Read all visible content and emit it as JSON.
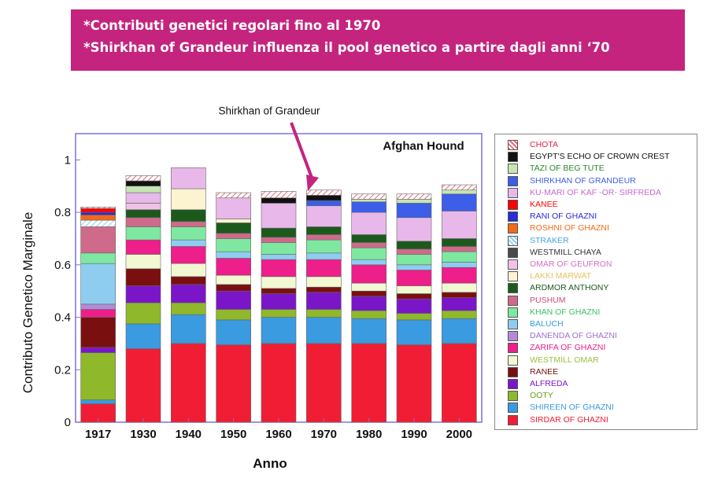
{
  "banner": {
    "line1": "*Contributi genetici regolari fino al 1970",
    "line2": "*Shirkhan of Grandeur influenza il pool genetico a partire dagli anni ‘70",
    "color": "#c4247e"
  },
  "chart_data": {
    "type": "bar",
    "stacked": true,
    "title": "Afghan Hound",
    "xlabel": "Anno",
    "ylabel": "Contributo Genetico Marginale",
    "ylim": [
      0,
      1.1
    ],
    "yticks": [
      "0",
      "0.2",
      "0.4",
      "0.6",
      "0.8",
      "1"
    ],
    "grid": false,
    "legend_position": "right",
    "annotation": {
      "text": "Shirkhan of Grandeur",
      "target_category": "1970"
    },
    "categories": [
      "1917",
      "1930",
      "1940",
      "1950",
      "1960",
      "1970",
      "1980",
      "1990",
      "2000"
    ],
    "series": [
      {
        "name": "SIRDAR OF GHAZNI",
        "color": "#f01d35",
        "values": [
          0.07,
          0.28,
          0.3,
          0.295,
          0.3,
          0.3,
          0.3,
          0.295,
          0.3
        ]
      },
      {
        "name": "SHIREEN OF GHAZNI",
        "color": "#3a9be0",
        "values": [
          0.015,
          0.095,
          0.11,
          0.095,
          0.1,
          0.1,
          0.095,
          0.095,
          0.095
        ]
      },
      {
        "name": "OOTY",
        "color": "#8fb82a",
        "values": [
          0.18,
          0.08,
          0.045,
          0.04,
          0.03,
          0.03,
          0.03,
          0.025,
          0.03
        ]
      },
      {
        "name": "ALFREDA",
        "color": "#7a16c8",
        "values": [
          0.02,
          0.065,
          0.07,
          0.07,
          0.06,
          0.065,
          0.055,
          0.055,
          0.05
        ]
      },
      {
        "name": "RANEE",
        "color": "#7a0f0f",
        "values": [
          0.115,
          0.065,
          0.03,
          0.025,
          0.02,
          0.02,
          0.02,
          0.02,
          0.02
        ]
      },
      {
        "name": "WESTMILL OMAR",
        "color": "#f2f8d2",
        "values": [
          0.0,
          0.055,
          0.05,
          0.035,
          0.045,
          0.04,
          0.03,
          0.03,
          0.035
        ]
      },
      {
        "name": "ZARIFA OF GHAZNI",
        "color": "#ee1e8a",
        "values": [
          0.03,
          0.055,
          0.065,
          0.065,
          0.065,
          0.065,
          0.07,
          0.06,
          0.06
        ]
      },
      {
        "name": "DANENDA OF GHAZNI",
        "color": "#b38ad8",
        "values": [
          0.02,
          0.0,
          0.0,
          0.0,
          0.0,
          0.0,
          0.0,
          0.0,
          0.0
        ]
      },
      {
        "name": "BALUCH",
        "color": "#8ecdf0",
        "values": [
          0.155,
          0.0,
          0.025,
          0.025,
          0.02,
          0.025,
          0.02,
          0.02,
          0.02
        ]
      },
      {
        "name": "KHAN OF GHAZNI",
        "color": "#7ee8a0",
        "values": [
          0.04,
          0.05,
          0.05,
          0.05,
          0.045,
          0.05,
          0.045,
          0.04,
          0.04
        ]
      },
      {
        "name": "PUSHUM",
        "color": "#d06a8a",
        "values": [
          0.1,
          0.035,
          0.02,
          0.02,
          0.02,
          0.02,
          0.02,
          0.02,
          0.02
        ]
      },
      {
        "name": "ARDMOR ANTHONY",
        "color": "#1c5a1c",
        "values": [
          0.0,
          0.03,
          0.045,
          0.04,
          0.035,
          0.03,
          0.03,
          0.03,
          0.03
        ]
      },
      {
        "name": "LAKKI MARWAT",
        "color": "#fcf3d0",
        "values": [
          0.0,
          0.0,
          0.08,
          0.015,
          0.0,
          0.0,
          0.0,
          0.0,
          0.0
        ]
      },
      {
        "name": "OMAR OF GEUFRON",
        "color": "#f2c2e6",
        "values": [
          0.0,
          0.025,
          0.0,
          0.0,
          0.0,
          0.0,
          0.0,
          0.0,
          0.0
        ]
      },
      {
        "name": "WESTMILL CHAYA",
        "color": "#4a4a4a",
        "values": [
          0.0,
          0.0,
          0.0,
          0.0,
          0.0,
          0.0,
          0.0,
          0.0,
          0.0
        ]
      },
      {
        "name": "STRAKER",
        "color": "#b8ddf4",
        "values": [
          0.025,
          0.0,
          0.0,
          0.0,
          0.0,
          0.0,
          0.0,
          0.0,
          0.0
        ]
      },
      {
        "name": "ROSHNI OF GHAZNI",
        "color": "#f06a1a",
        "values": [
          0.02,
          0.0,
          0.0,
          0.0,
          0.0,
          0.0,
          0.0,
          0.0,
          0.0
        ]
      },
      {
        "name": "RANI OF GHAZNI",
        "color": "#2a2ad8",
        "values": [
          0.01,
          0.0,
          0.0,
          0.0,
          0.0,
          0.0,
          0.0,
          0.0,
          0.0
        ]
      },
      {
        "name": "KANEE",
        "color": "#ff0000",
        "values": [
          0.015,
          0.0,
          0.0,
          0.0,
          0.0,
          0.0,
          0.0,
          0.0,
          0.0
        ]
      },
      {
        "name": "KU-MARI OF KAF -OR- SIRFREDA",
        "color": "#e8b8ea",
        "values": [
          0.0,
          0.04,
          0.08,
          0.08,
          0.095,
          0.08,
          0.085,
          0.09,
          0.105
        ]
      },
      {
        "name": "SHIRKHAN OF GRANDEUR",
        "color": "#3c5ee8",
        "values": [
          0.0,
          0.0,
          0.0,
          0.0,
          0.0,
          0.02,
          0.04,
          0.055,
          0.065
        ]
      },
      {
        "name": "TAZI OF BEG TUTE",
        "color": "#c6e6b4",
        "values": [
          0.0,
          0.025,
          0.0,
          0.0,
          0.0,
          0.0,
          0.01,
          0.015,
          0.015
        ]
      },
      {
        "name": "EGYPT'S ECHO OF CROWN CREST",
        "color": "#111111",
        "values": [
          0.0,
          0.02,
          0.0,
          0.0,
          0.02,
          0.02,
          0.0,
          0.0,
          0.0
        ]
      },
      {
        "name": "CHOTA",
        "color": "#fbe3e3",
        "values": [
          0.005,
          0.02,
          0.0,
          0.02,
          0.025,
          0.02,
          0.02,
          0.02,
          0.02
        ]
      }
    ]
  },
  "legend_order": [
    {
      "name": "CHOTA",
      "text_color": "#e0204a",
      "pattern": "hatch",
      "color": "#e46a7a"
    },
    {
      "name": "EGYPT'S ECHO OF CROWN CREST",
      "text_color": "#111111",
      "pattern": "solid",
      "color": "#111111"
    },
    {
      "name": "TAZI OF BEG TUTE",
      "text_color": "#2a8a2a",
      "pattern": "solid",
      "color": "#c6e6b4"
    },
    {
      "name": "SHIRKHAN OF GRANDEUR",
      "text_color": "#3c5ee8",
      "pattern": "solid",
      "color": "#3c5ee8"
    },
    {
      "name": "KU-MARI OF KAF -OR- SIRFREDA",
      "text_color": "#c46ad0",
      "pattern": "solid",
      "color": "#e8b8ea"
    },
    {
      "name": "KANEE",
      "text_color": "#ff0000",
      "pattern": "solid",
      "color": "#ff0000"
    },
    {
      "name": "RANI OF GHAZNI",
      "text_color": "#2a2ad8",
      "pattern": "solid",
      "color": "#2a2ad8"
    },
    {
      "name": "ROSHNI OF GHAZNI",
      "text_color": "#f06a1a",
      "pattern": "solid",
      "color": "#f06a1a"
    },
    {
      "name": "STRAKER",
      "text_color": "#4aa4e0",
      "pattern": "hatch",
      "color": "#8ecdf0"
    },
    {
      "name": "WESTMILL CHAYA",
      "text_color": "#333333",
      "pattern": "solid",
      "color": "#4a4a4a"
    },
    {
      "name": "OMAR OF GEUFRON",
      "text_color": "#d070c8",
      "pattern": "solid",
      "color": "#f2c2e6"
    },
    {
      "name": "LAKKI MARWAT",
      "text_color": "#e8c060",
      "pattern": "solid",
      "color": "#fcf3d0"
    },
    {
      "name": "ARDMOR ANTHONY",
      "text_color": "#1c5a1c",
      "pattern": "solid",
      "color": "#1c5a1c"
    },
    {
      "name": "PUSHUM",
      "text_color": "#d04a7a",
      "pattern": "solid",
      "color": "#d06a8a"
    },
    {
      "name": "KHAN OF GHAZNI",
      "text_color": "#3ac060",
      "pattern": "solid",
      "color": "#7ee8a0"
    },
    {
      "name": "BALUCH",
      "text_color": "#3a9be0",
      "pattern": "solid",
      "color": "#8ecdf0"
    },
    {
      "name": "DANENDA OF GHAZNI",
      "text_color": "#a070d0",
      "pattern": "solid",
      "color": "#b38ad8"
    },
    {
      "name": "ZARIFA OF GHAZNI",
      "text_color": "#ee1e8a",
      "pattern": "solid",
      "color": "#ee1e8a"
    },
    {
      "name": "WESTMILL OMAR",
      "text_color": "#a0c040",
      "pattern": "solid",
      "color": "#f2f8d2"
    },
    {
      "name": "RANEE",
      "text_color": "#7a0f0f",
      "pattern": "solid",
      "color": "#7a0f0f"
    },
    {
      "name": "ALFREDA",
      "text_color": "#7a16c8",
      "pattern": "solid",
      "color": "#7a16c8"
    },
    {
      "name": "OOTY",
      "text_color": "#6a9a1a",
      "pattern": "solid",
      "color": "#8fb82a"
    },
    {
      "name": "SHIREEN OF GHAZNI",
      "text_color": "#3a9be0",
      "pattern": "solid",
      "color": "#3a9be0"
    },
    {
      "name": "SIRDAR OF GHAZNI",
      "text_color": "#f01d35",
      "pattern": "solid",
      "color": "#f01d35"
    }
  ]
}
